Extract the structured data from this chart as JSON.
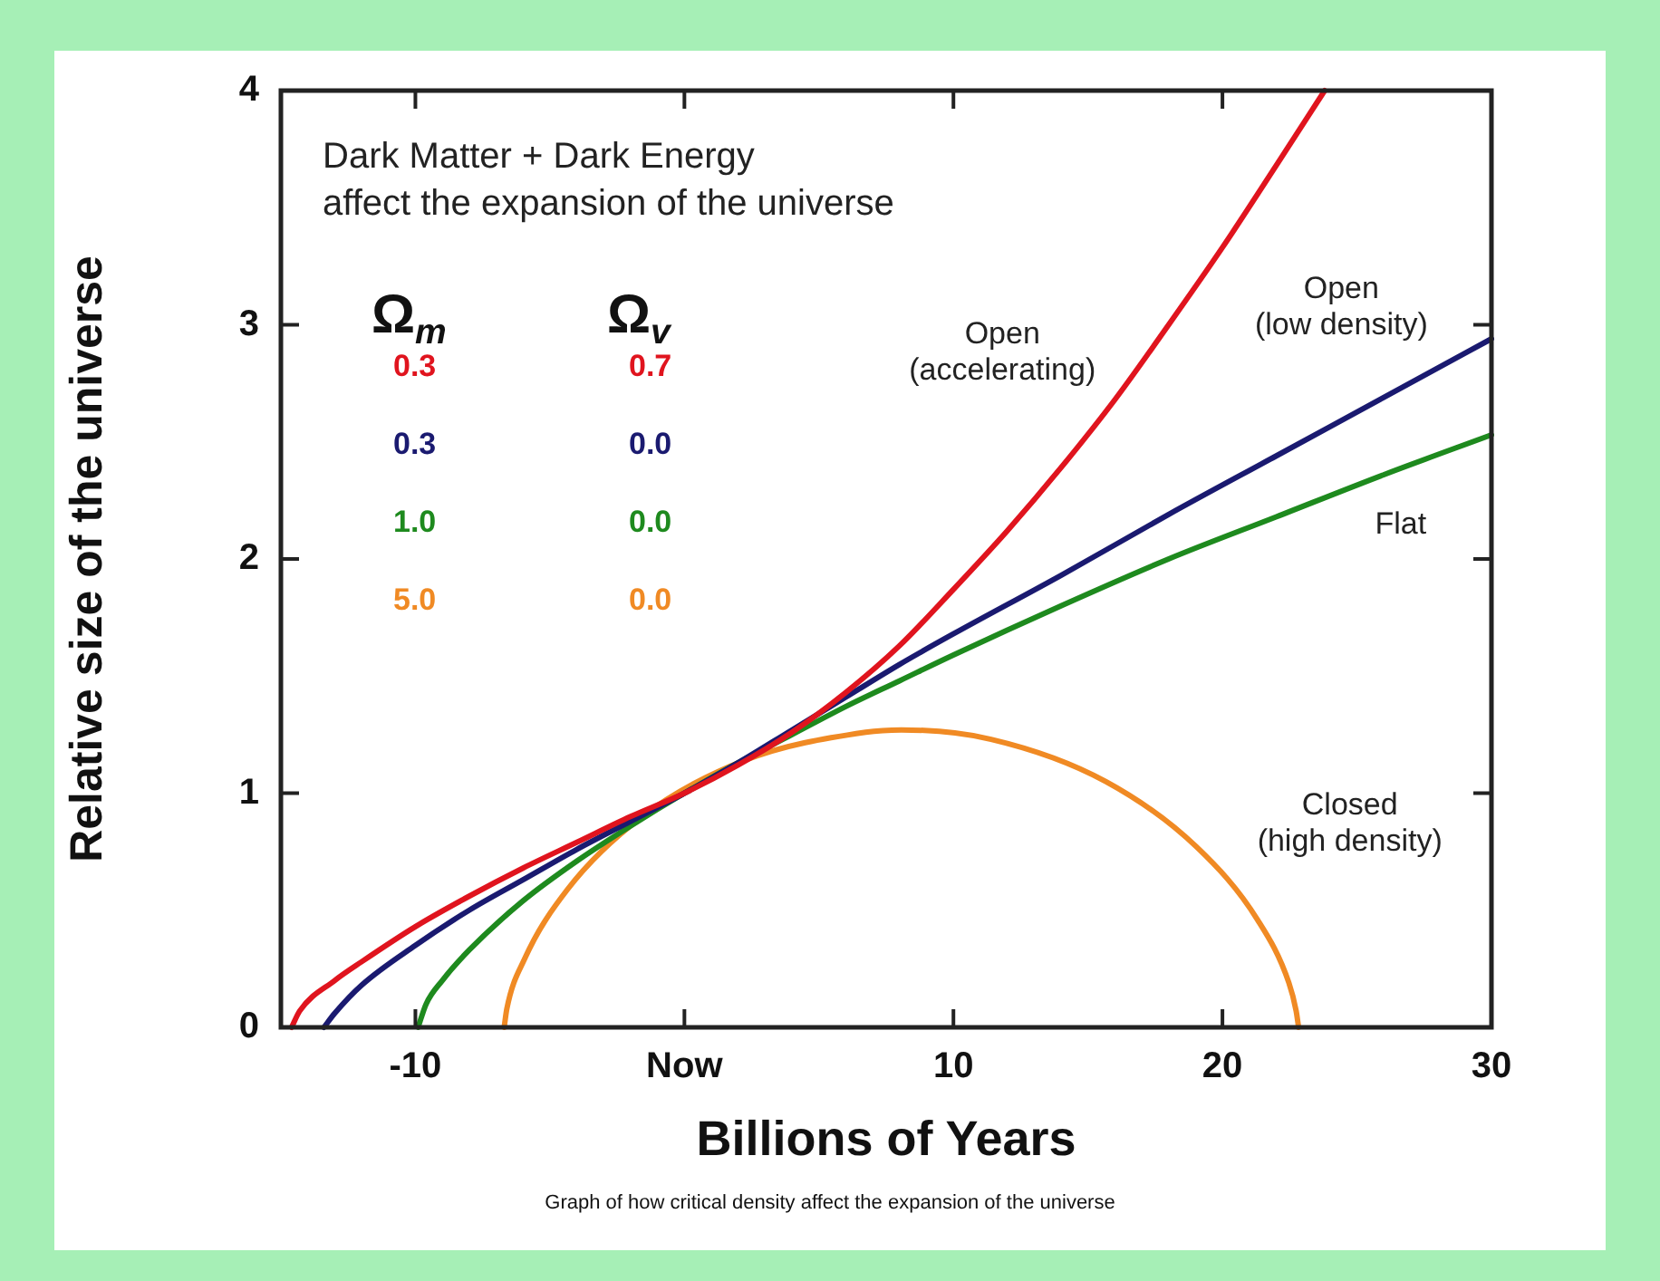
{
  "chart_data": {
    "type": "line",
    "xlabel": "Billions of Years",
    "ylabel": "Relative size of the universe",
    "xlim": [
      -15,
      30
    ],
    "ylim": [
      0,
      4
    ],
    "xticks": [
      -10,
      {
        "value": 0,
        "label": "Now"
      },
      10,
      20,
      30
    ],
    "yticks": [
      0,
      1,
      2,
      3,
      4
    ],
    "marker": "none",
    "legend_title": "Ω$_{m}$ Ω$_{v}$",
    "series": [
      {
        "name": "0.3 0.7",
        "color": "#e0141e",
        "x": [
          -14.6,
          -14.3,
          -13,
          -12,
          -10,
          -8,
          -6,
          -4,
          -2,
          0,
          2,
          4,
          6,
          8,
          10,
          12,
          14,
          16,
          18,
          20,
          22,
          23.8
        ],
        "values": [
          0,
          0.07,
          0.2,
          0.28,
          0.43,
          0.56,
          0.68,
          0.79,
          0.9,
          1,
          1.12,
          1.26,
          1.43,
          1.63,
          1.87,
          2.12,
          2.39,
          2.68,
          3.0,
          3.33,
          3.68,
          4
        ]
      },
      {
        "name": "0.3 0.0",
        "color": "#1a1a70",
        "x": [
          -13.4,
          -13,
          -12,
          -10,
          -8,
          -6,
          -4,
          -2,
          0,
          2,
          4,
          6,
          8,
          10,
          14,
          18,
          22,
          26,
          30
        ],
        "values": [
          0,
          0.06,
          0.18,
          0.35,
          0.5,
          0.63,
          0.76,
          0.88,
          1,
          1.13,
          1.27,
          1.41,
          1.55,
          1.68,
          1.93,
          2.19,
          2.44,
          2.69,
          2.94
        ]
      },
      {
        "name": "1.0 0.0",
        "color": "#1e8a1e",
        "x": [
          -9.9,
          -9.6,
          -9,
          -8,
          -6,
          -4,
          -2,
          0,
          2,
          4,
          6,
          8,
          10,
          14,
          18,
          22,
          26,
          30
        ],
        "values": [
          0,
          0.1,
          0.2,
          0.33,
          0.54,
          0.71,
          0.86,
          1,
          1.13,
          1.25,
          1.37,
          1.48,
          1.59,
          1.8,
          2.0,
          2.18,
          2.36,
          2.53
        ]
      },
      {
        "name": "5.0 0.0",
        "color": "#f08a24",
        "x": [
          -6.7,
          -6.6,
          -5.95,
          -4.34,
          -1.57,
          2.24,
          6.74,
          8.07,
          11.4,
          15.66,
          19.04,
          21.3,
          22.47,
          22.74,
          22.83
        ],
        "values": [
          0,
          0.08,
          0.29,
          0.59,
          0.9,
          1.14,
          1.26,
          1.27,
          1.23,
          1.05,
          0.77,
          0.46,
          0.19,
          0.07,
          0
        ]
      }
    ],
    "annotations": [
      "Dark Matter + Dark Energy\naffect the expansion of the universe",
      "Open\n(accelerating)",
      "Open\n(low density)",
      "Flat",
      "Closed\n(high density)",
      "Graph of how critical density affect the expansion of the universe"
    ]
  }
}
